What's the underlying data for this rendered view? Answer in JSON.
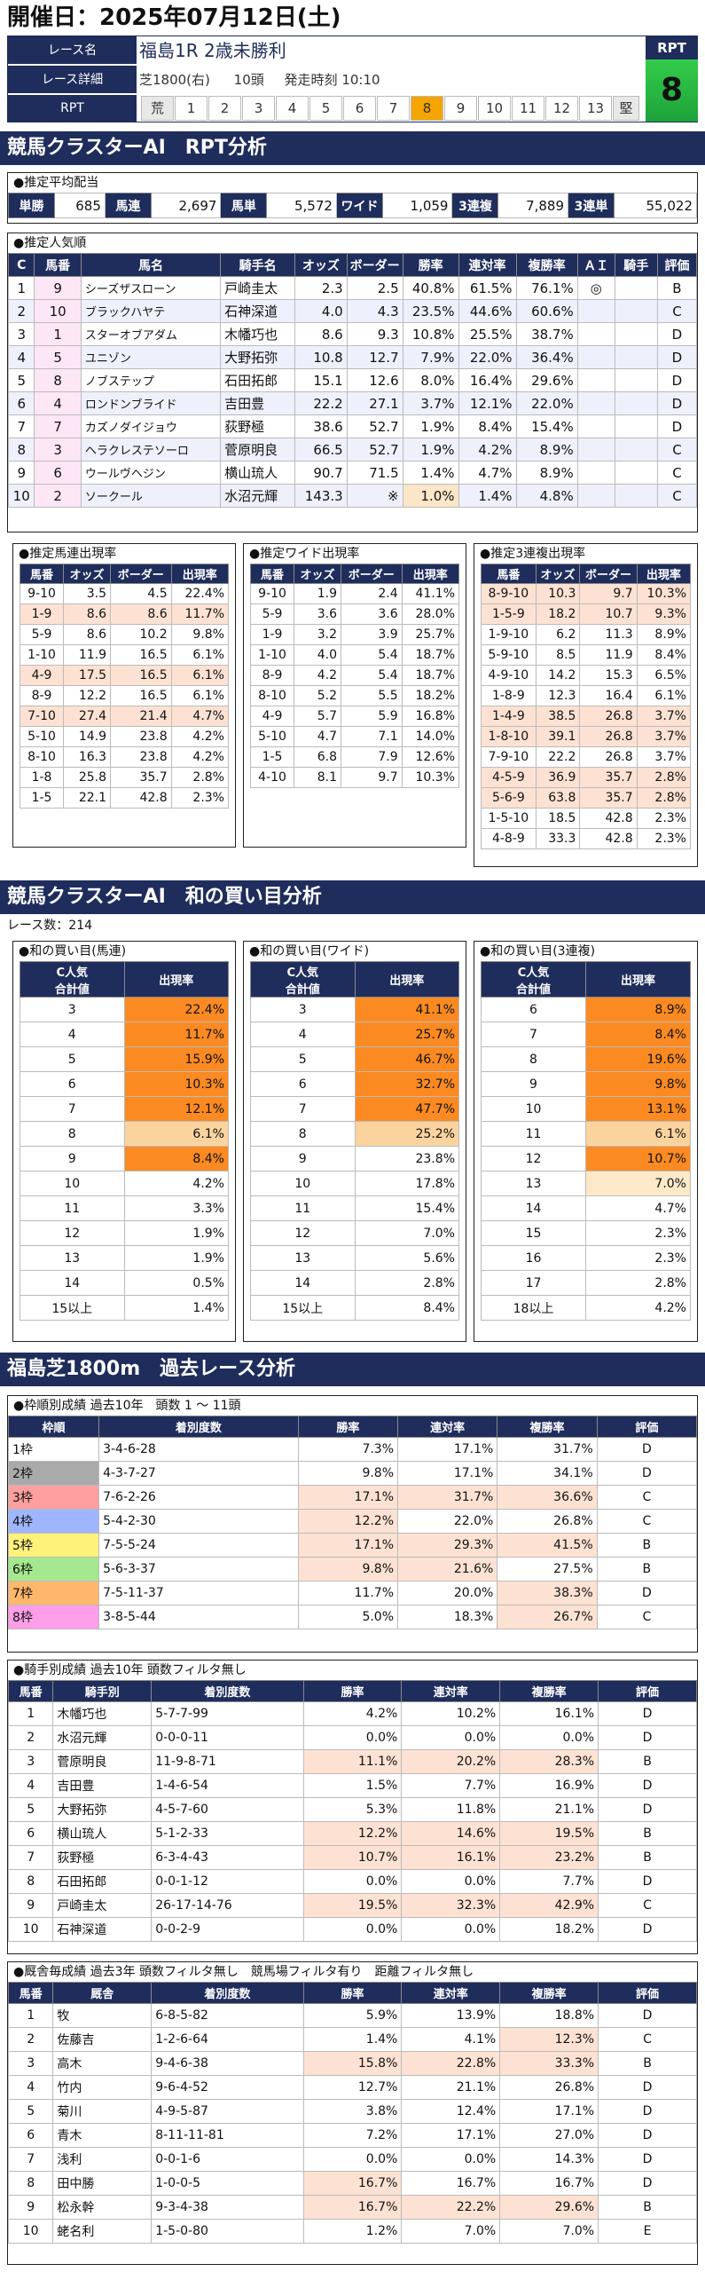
{
  "header": {
    "date": "開催日：2025年07月12日(土)"
  },
  "race": {
    "label_name": "レース名",
    "name": "福島1R 2歳未勝利",
    "label_detail": "レース詳細",
    "detail_course": "芝1800(右)",
    "detail_heads": "10頭",
    "detail_time": "発走時刻 10:10",
    "label_rpt": "RPT",
    "rpt_title": "RPT",
    "rpt_value": "8",
    "rpt_scale": [
      "荒",
      "1",
      "2",
      "3",
      "4",
      "5",
      "6",
      "7",
      "8",
      "9",
      "10",
      "11",
      "12",
      "13",
      "堅"
    ],
    "rpt_selected": 8
  },
  "sec1": {
    "title": "競馬クラスターAI　RPT分析"
  },
  "payout": {
    "title": "●推定平均配当",
    "items": [
      {
        "label": "単勝",
        "value": "685"
      },
      {
        "label": "馬連",
        "value": "2,697"
      },
      {
        "label": "馬単",
        "value": "5,572"
      },
      {
        "label": "ワイド",
        "value": "1,059"
      },
      {
        "label": "3連複",
        "value": "7,889"
      },
      {
        "label": "3連単",
        "value": "55,022"
      }
    ]
  },
  "pop": {
    "title": "●推定人気順",
    "headers": [
      "C",
      "馬番",
      "馬名",
      "騎手名",
      "オッズ",
      "ボーダー",
      "勝率",
      "連対率",
      "複勝率",
      "ＡＩ",
      "騎手",
      "評価"
    ],
    "rows": [
      {
        "c": "1",
        "num": "9",
        "name": "シーズザスローン",
        "jockey": "戸崎圭太",
        "odds": "2.3",
        "border": "2.5",
        "win": "40.8%",
        "ren": "61.5%",
        "fuku": "76.1%",
        "ai": "◎",
        "kishu": "",
        "eval": "B"
      },
      {
        "c": "2",
        "num": "10",
        "name": "ブラックハヤテ",
        "jockey": "石神深道",
        "odds": "4.0",
        "border": "4.3",
        "win": "23.5%",
        "ren": "44.6%",
        "fuku": "60.6%",
        "ai": "",
        "kishu": "",
        "eval": "C"
      },
      {
        "c": "3",
        "num": "1",
        "name": "スターオブアダム",
        "jockey": "木幡巧也",
        "odds": "8.6",
        "border": "9.3",
        "win": "10.8%",
        "ren": "25.5%",
        "fuku": "38.7%",
        "ai": "",
        "kishu": "",
        "eval": "D"
      },
      {
        "c": "4",
        "num": "5",
        "name": "ユニゾン",
        "jockey": "大野拓弥",
        "odds": "10.8",
        "border": "12.7",
        "win": "7.9%",
        "ren": "22.0%",
        "fuku": "36.4%",
        "ai": "",
        "kishu": "",
        "eval": "D"
      },
      {
        "c": "5",
        "num": "8",
        "name": "ノブステップ",
        "jockey": "石田拓郎",
        "odds": "15.1",
        "border": "12.6",
        "win": "8.0%",
        "ren": "16.4%",
        "fuku": "29.6%",
        "ai": "",
        "kishu": "",
        "eval": "D"
      },
      {
        "c": "6",
        "num": "4",
        "name": "ロンドンブライド",
        "jockey": "吉田豊",
        "odds": "22.2",
        "border": "27.1",
        "win": "3.7%",
        "ren": "12.1%",
        "fuku": "22.0%",
        "ai": "",
        "kishu": "",
        "eval": "D"
      },
      {
        "c": "7",
        "num": "7",
        "name": "カズノダイジョウ",
        "jockey": "荻野極",
        "odds": "38.6",
        "border": "52.7",
        "win": "1.9%",
        "ren": "8.4%",
        "fuku": "15.4%",
        "ai": "",
        "kishu": "",
        "eval": "D"
      },
      {
        "c": "8",
        "num": "3",
        "name": "ヘラクレステソーロ",
        "jockey": "菅原明良",
        "odds": "66.5",
        "border": "52.7",
        "win": "1.9%",
        "ren": "4.2%",
        "fuku": "8.9%",
        "ai": "",
        "kishu": "",
        "eval": "C"
      },
      {
        "c": "9",
        "num": "6",
        "name": "ウールヴヘジン",
        "jockey": "横山琉人",
        "odds": "90.7",
        "border": "71.5",
        "win": "1.4%",
        "ren": "4.7%",
        "fuku": "8.9%",
        "ai": "",
        "kishu": "",
        "eval": "C"
      },
      {
        "c": "10",
        "num": "2",
        "name": "ソークール",
        "jockey": "水沼元輝",
        "odds": "143.3",
        "border": "※",
        "win": "1.0%",
        "ren": "1.4%",
        "fuku": "4.8%",
        "ai": "",
        "kishu": "",
        "eval": "C"
      }
    ]
  },
  "umaren": {
    "title": "●推定馬連出現率",
    "headers": [
      "馬番",
      "オッズ",
      "ボーダー",
      "出現率"
    ],
    "rows": [
      [
        "9-10",
        "3.5",
        "4.5",
        "22.4%"
      ],
      [
        "1-9",
        "8.6",
        "8.6",
        "11.7%"
      ],
      [
        "5-9",
        "8.6",
        "10.2",
        "9.8%"
      ],
      [
        "1-10",
        "11.9",
        "16.5",
        "6.1%"
      ],
      [
        "4-9",
        "17.5",
        "16.5",
        "6.1%"
      ],
      [
        "8-9",
        "12.2",
        "16.5",
        "6.1%"
      ],
      [
        "7-10",
        "27.4",
        "21.4",
        "4.7%"
      ],
      [
        "5-10",
        "14.9",
        "23.8",
        "4.2%"
      ],
      [
        "8-10",
        "16.3",
        "23.8",
        "4.2%"
      ],
      [
        "1-8",
        "25.8",
        "35.7",
        "2.8%"
      ],
      [
        "1-5",
        "22.1",
        "42.8",
        "2.3%"
      ]
    ]
  },
  "wide": {
    "title": "●推定ワイド出現率",
    "headers": [
      "馬番",
      "オッズ",
      "ボーダー",
      "出現率"
    ],
    "rows": [
      [
        "9-10",
        "1.9",
        "2.4",
        "41.1%"
      ],
      [
        "5-9",
        "3.6",
        "3.6",
        "28.0%"
      ],
      [
        "1-9",
        "3.2",
        "3.9",
        "25.7%"
      ],
      [
        "1-10",
        "4.0",
        "5.4",
        "18.7%"
      ],
      [
        "8-9",
        "4.2",
        "5.4",
        "18.7%"
      ],
      [
        "8-10",
        "5.2",
        "5.5",
        "18.2%"
      ],
      [
        "4-9",
        "5.7",
        "5.9",
        "16.8%"
      ],
      [
        "5-10",
        "4.7",
        "7.1",
        "14.0%"
      ],
      [
        "1-5",
        "6.8",
        "7.9",
        "12.6%"
      ],
      [
        "4-10",
        "8.1",
        "9.7",
        "10.3%"
      ]
    ]
  },
  "sanren": {
    "title": "●推定3連複出現率",
    "headers": [
      "馬番",
      "オッズ",
      "ボーダー",
      "出現率"
    ],
    "rows": [
      [
        "8-9-10",
        "10.3",
        "9.7",
        "10.3%"
      ],
      [
        "1-5-9",
        "18.2",
        "10.7",
        "9.3%"
      ],
      [
        "1-9-10",
        "6.2",
        "11.3",
        "8.9%"
      ],
      [
        "5-9-10",
        "8.5",
        "11.9",
        "8.4%"
      ],
      [
        "4-9-10",
        "14.2",
        "15.3",
        "6.5%"
      ],
      [
        "1-8-9",
        "12.3",
        "16.4",
        "6.1%"
      ],
      [
        "1-4-9",
        "38.5",
        "26.8",
        "3.7%"
      ],
      [
        "1-8-10",
        "39.1",
        "26.8",
        "3.7%"
      ],
      [
        "7-9-10",
        "22.2",
        "26.8",
        "3.7%"
      ],
      [
        "4-5-9",
        "36.9",
        "35.7",
        "2.8%"
      ],
      [
        "5-6-9",
        "63.8",
        "35.7",
        "2.8%"
      ],
      [
        "1-5-10",
        "18.5",
        "42.8",
        "2.3%"
      ],
      [
        "4-8-9",
        "33.3",
        "42.8",
        "2.3%"
      ]
    ]
  },
  "sec2": {
    "title": "競馬クラスターAI　和の買い目分析",
    "race_count": "レース数：214"
  },
  "wa_umaren": {
    "title": "●和の買い目(馬連)",
    "h1": "C人気",
    "h1b": "合計値",
    "h2": "出現率",
    "rows": [
      [
        "3",
        "22.4%"
      ],
      [
        "4",
        "11.7%"
      ],
      [
        "5",
        "15.9%"
      ],
      [
        "6",
        "10.3%"
      ],
      [
        "7",
        "12.1%"
      ],
      [
        "8",
        "6.1%"
      ],
      [
        "9",
        "8.4%"
      ],
      [
        "10",
        "4.2%"
      ],
      [
        "11",
        "3.3%"
      ],
      [
        "12",
        "1.9%"
      ],
      [
        "13",
        "1.9%"
      ],
      [
        "14",
        "0.5%"
      ],
      [
        "15以上",
        "1.4%"
      ]
    ]
  },
  "wa_wide": {
    "title": "●和の買い目(ワイド)",
    "h1": "C人気",
    "h1b": "合計値",
    "h2": "出現率",
    "rows": [
      [
        "3",
        "41.1%"
      ],
      [
        "4",
        "25.7%"
      ],
      [
        "5",
        "46.7%"
      ],
      [
        "6",
        "32.7%"
      ],
      [
        "7",
        "47.7%"
      ],
      [
        "8",
        "25.2%"
      ],
      [
        "9",
        "23.8%"
      ],
      [
        "10",
        "17.8%"
      ],
      [
        "11",
        "15.4%"
      ],
      [
        "12",
        "7.0%"
      ],
      [
        "13",
        "5.6%"
      ],
      [
        "14",
        "2.8%"
      ],
      [
        "15以上",
        "8.4%"
      ]
    ]
  },
  "wa_sanren": {
    "title": "●和の買い目(3連複)",
    "h1": "C人気",
    "h1b": "合計値",
    "h2": "出現率",
    "rows": [
      [
        "6",
        "8.9%"
      ],
      [
        "7",
        "8.4%"
      ],
      [
        "8",
        "19.6%"
      ],
      [
        "9",
        "9.8%"
      ],
      [
        "10",
        "13.1%"
      ],
      [
        "11",
        "6.1%"
      ],
      [
        "12",
        "10.7%"
      ],
      [
        "13",
        "7.0%"
      ],
      [
        "14",
        "4.7%"
      ],
      [
        "15",
        "2.3%"
      ],
      [
        "16",
        "2.3%"
      ],
      [
        "17",
        "2.8%"
      ],
      [
        "18以上",
        "4.2%"
      ]
    ]
  },
  "sec3": {
    "title": "福島芝1800m　過去レース分析"
  },
  "waku": {
    "title": "●枠順別成績 過去10年　頭数 1 ～ 11頭",
    "headers": [
      "枠順",
      "着別度数",
      "勝率",
      "連対率",
      "複勝率",
      "評価"
    ],
    "rows": [
      [
        "1枠",
        "3-4-6-28",
        "7.3%",
        "17.1%",
        "31.7%",
        "D"
      ],
      [
        "2枠",
        "4-3-7-27",
        "9.8%",
        "17.1%",
        "34.1%",
        "D"
      ],
      [
        "3枠",
        "7-6-2-26",
        "17.1%",
        "31.7%",
        "36.6%",
        "C"
      ],
      [
        "4枠",
        "5-4-2-30",
        "12.2%",
        "22.0%",
        "26.8%",
        "C"
      ],
      [
        "5枠",
        "7-5-5-24",
        "17.1%",
        "29.3%",
        "41.5%",
        "B"
      ],
      [
        "6枠",
        "5-6-3-37",
        "9.8%",
        "21.6%",
        "27.5%",
        "B"
      ],
      [
        "7枠",
        "7-5-11-37",
        "11.7%",
        "20.0%",
        "38.3%",
        "D"
      ],
      [
        "8枠",
        "3-8-5-44",
        "5.0%",
        "18.3%",
        "26.7%",
        "C"
      ]
    ]
  },
  "jockey": {
    "title": "●騎手別成績 過去10年 頭数フィルタ無し",
    "headers": [
      "馬番",
      "騎手別",
      "着別度数",
      "勝率",
      "連対率",
      "複勝率",
      "評価"
    ],
    "rows": [
      [
        "1",
        "木幡巧也",
        "5-7-7-99",
        "4.2%",
        "10.2%",
        "16.1%",
        "D"
      ],
      [
        "2",
        "水沼元輝",
        "0-0-0-11",
        "0.0%",
        "0.0%",
        "0.0%",
        "D"
      ],
      [
        "3",
        "菅原明良",
        "11-9-8-71",
        "11.1%",
        "20.2%",
        "28.3%",
        "B"
      ],
      [
        "4",
        "吉田豊",
        "1-4-6-54",
        "1.5%",
        "7.7%",
        "16.9%",
        "D"
      ],
      [
        "5",
        "大野拓弥",
        "4-5-7-60",
        "5.3%",
        "11.8%",
        "21.1%",
        "D"
      ],
      [
        "6",
        "横山琉人",
        "5-1-2-33",
        "12.2%",
        "14.6%",
        "19.5%",
        "B"
      ],
      [
        "7",
        "荻野極",
        "6-3-4-43",
        "10.7%",
        "16.1%",
        "23.2%",
        "B"
      ],
      [
        "8",
        "石田拓郎",
        "0-0-1-12",
        "0.0%",
        "0.0%",
        "7.7%",
        "D"
      ],
      [
        "9",
        "戸崎圭太",
        "26-17-14-76",
        "19.5%",
        "32.3%",
        "42.9%",
        "C"
      ],
      [
        "10",
        "石神深道",
        "0-0-2-9",
        "0.0%",
        "0.0%",
        "18.2%",
        "D"
      ]
    ]
  },
  "stable": {
    "title": "●厩舎毎成績 過去3年 頭数フィルタ無し　競馬場フィルタ有り　距離フィルタ無し",
    "headers": [
      "馬番",
      "厩舎",
      "着別度数",
      "勝率",
      "連対率",
      "複勝率",
      "評価"
    ],
    "rows": [
      [
        "1",
        "牧",
        "6-8-5-82",
        "5.9%",
        "13.9%",
        "18.8%",
        "D"
      ],
      [
        "2",
        "佐藤吉",
        "1-2-6-64",
        "1.4%",
        "4.1%",
        "12.3%",
        "C"
      ],
      [
        "3",
        "高木",
        "9-4-6-38",
        "15.8%",
        "22.8%",
        "33.3%",
        "B"
      ],
      [
        "4",
        "竹内",
        "9-6-4-52",
        "12.7%",
        "21.1%",
        "26.8%",
        "D"
      ],
      [
        "5",
        "菊川",
        "4-9-5-87",
        "3.8%",
        "12.4%",
        "17.1%",
        "D"
      ],
      [
        "6",
        "青木",
        "8-11-11-81",
        "7.2%",
        "17.1%",
        "27.0%",
        "D"
      ],
      [
        "7",
        "浅利",
        "0-0-1-6",
        "0.0%",
        "0.0%",
        "14.3%",
        "D"
      ],
      [
        "8",
        "田中勝",
        "1-0-0-5",
        "16.7%",
        "16.7%",
        "16.7%",
        "D"
      ],
      [
        "9",
        "松永幹",
        "9-3-4-38",
        "16.7%",
        "22.2%",
        "29.6%",
        "B"
      ],
      [
        "10",
        "蛯名利",
        "1-5-0-80",
        "1.2%",
        "7.0%",
        "7.0%",
        "E"
      ]
    ]
  },
  "colors": {
    "navy": "#1f2d5c",
    "rpt_green": "#2ab544",
    "highlight_orange": "#fa8a21",
    "highlight_pink": "#fde2d3",
    "rpt_selected": "#f5a400"
  }
}
